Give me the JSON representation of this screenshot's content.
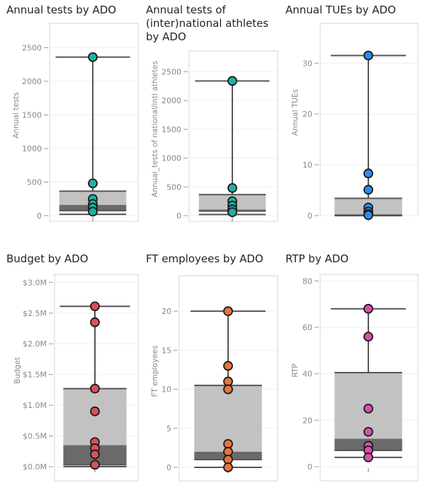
{
  "chart_data": [
    {
      "type": "box",
      "title": "Annual tests by ADO",
      "ylabel": "Annual tests",
      "ylim": [
        0,
        2800
      ],
      "ticks": [
        0,
        500,
        1000,
        1500,
        2000,
        2500
      ],
      "tick_labels": [
        "0",
        "500",
        "1000",
        "1500",
        "2000",
        "2500"
      ],
      "box": {
        "min": 20,
        "q1": 75,
        "median": 160,
        "q3": 365,
        "max": 2360
      },
      "points": [
        2360,
        480,
        250,
        175,
        120,
        60
      ],
      "color": "#1FB0A0",
      "grid": true
    },
    {
      "type": "box",
      "title": "Annual tests of (inter)national athletes by ADO",
      "ylabel": "Annual_tests of national/intl athletes",
      "ylim": [
        0,
        2800
      ],
      "ticks": [
        0,
        500,
        1000,
        1500,
        2000,
        2500
      ],
      "tick_labels": [
        "0",
        "500",
        "1000",
        "1500",
        "2000",
        "2500"
      ],
      "box": {
        "min": 20,
        "q1": 80,
        "median": 105,
        "q3": 365,
        "max": 2340
      },
      "points": [
        2340,
        480,
        250,
        175,
        110,
        60
      ],
      "color": "#1FB0A0",
      "grid": true
    },
    {
      "type": "box",
      "title": "Annual TUEs by ADO",
      "ylabel": "Annual TUEs",
      "ylim": [
        0,
        37
      ],
      "ticks": [
        0,
        10,
        20,
        30
      ],
      "tick_labels": [
        "0",
        "10",
        "20",
        "30"
      ],
      "box": {
        "min": 0,
        "q1": 0.1,
        "median": 0.2,
        "q3": 3.4,
        "max": 31.5
      },
      "points": [
        31.5,
        8.3,
        5.1,
        1.6,
        0.8,
        0.3,
        0.1
      ],
      "color": "#2A8DEB",
      "grid": true
    },
    {
      "type": "box",
      "title": "Budget by ADO",
      "ylabel": "Budget",
      "ylim": [
        0,
        3.05
      ],
      "ticks": [
        0,
        0.5,
        1,
        1.5,
        2,
        2.5,
        3
      ],
      "tick_labels": [
        "$0.0M",
        "$0.5M",
        "$1.0M",
        "$1.5M",
        "$2.0M",
        "$2.5M",
        "$3.0M"
      ],
      "box": {
        "min": 0,
        "q1": 0.03,
        "median": 0.35,
        "q3": 1.27,
        "max": 2.61
      },
      "points": [
        2.61,
        2.35,
        1.27,
        0.9,
        0.4,
        0.3,
        0.2,
        0.03
      ],
      "color": "#D9505A",
      "grid": true
    },
    {
      "type": "box",
      "title": "FT employees by ADO",
      "ylabel": "FT employees",
      "ylim": [
        0,
        24
      ],
      "ticks": [
        0,
        5,
        10,
        15,
        20
      ],
      "tick_labels": [
        "0",
        "5",
        "10",
        "15",
        "20"
      ],
      "box": {
        "min": 0,
        "q1": 1,
        "median": 2,
        "q3": 10.5,
        "max": 20
      },
      "points": [
        20,
        13,
        11,
        10,
        3,
        2,
        1,
        0
      ],
      "color": "#E8743B",
      "grid": true
    },
    {
      "type": "box",
      "title": "RTP by ADO",
      "ylabel": "RTP",
      "ylim": [
        0,
        81
      ],
      "ticks": [
        0,
        20,
        40,
        60,
        80
      ],
      "tick_labels": [
        "0",
        "20",
        "40",
        "60",
        "80"
      ],
      "box": {
        "min": 4,
        "q1": 7,
        "median": 12,
        "q3": 40.5,
        "max": 68
      },
      "points": [
        68,
        56,
        25,
        15,
        9,
        7,
        4
      ],
      "color": "#D84FB0",
      "grid": true
    }
  ]
}
